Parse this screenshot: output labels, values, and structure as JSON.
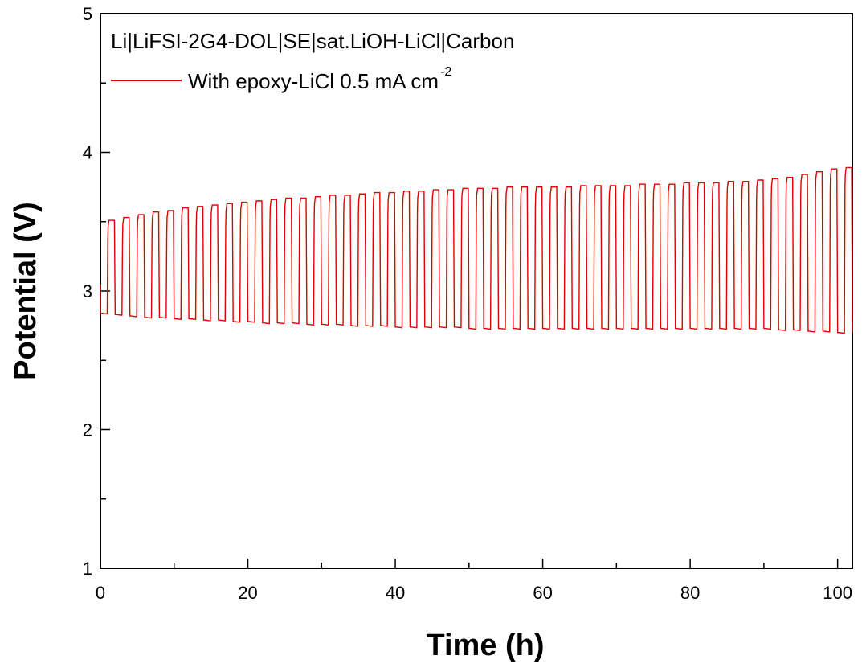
{
  "chart_data": {
    "type": "line",
    "title": "",
    "xlabel": "Time (h)",
    "ylabel": "Potential (V)",
    "xlim": [
      0,
      102
    ],
    "ylim": [
      1,
      5
    ],
    "xticks": [
      0,
      20,
      40,
      60,
      80,
      100
    ],
    "yticks": [
      1,
      2,
      3,
      4,
      5
    ],
    "xtick_labels": [
      "0",
      "20",
      "40",
      "60",
      "80",
      "100"
    ],
    "ytick_labels": [
      "1",
      "2",
      "3",
      "4",
      "5"
    ],
    "legend": {
      "header": "Li|LiFSI-2G4-DOL|SE|sat.LiOH-LiCl|Carbon",
      "entries": [
        {
          "label": "With epoxy-LiCl 0.5 mA cm",
          "superscript": "-2"
        }
      ],
      "placement": "top-left"
    },
    "series": [
      {
        "name": "With epoxy-LiCl 0.5 mA cm-2",
        "color": "#e00000",
        "cycle_period_h": 2,
        "cycle_start_x": [
          0,
          2,
          4,
          6,
          8,
          10,
          12,
          14,
          16,
          18,
          20,
          22,
          24,
          26,
          28,
          30,
          32,
          34,
          36,
          38,
          40,
          42,
          44,
          46,
          48,
          50,
          52,
          54,
          56,
          58,
          60,
          62,
          64,
          66,
          68,
          70,
          72,
          74,
          76,
          78,
          80,
          82,
          84,
          86,
          88,
          90,
          92,
          94,
          96,
          98,
          100
        ],
        "charge_voltage": [
          3.51,
          3.53,
          3.55,
          3.57,
          3.58,
          3.6,
          3.61,
          3.62,
          3.63,
          3.64,
          3.65,
          3.66,
          3.67,
          3.67,
          3.68,
          3.69,
          3.69,
          3.7,
          3.71,
          3.71,
          3.72,
          3.72,
          3.73,
          3.73,
          3.74,
          3.74,
          3.74,
          3.75,
          3.75,
          3.75,
          3.75,
          3.75,
          3.76,
          3.76,
          3.76,
          3.76,
          3.77,
          3.77,
          3.77,
          3.78,
          3.78,
          3.78,
          3.79,
          3.79,
          3.8,
          3.81,
          3.82,
          3.84,
          3.86,
          3.88,
          3.89
        ],
        "discharge_voltage": [
          2.84,
          2.83,
          2.82,
          2.81,
          2.81,
          2.8,
          2.8,
          2.79,
          2.79,
          2.78,
          2.78,
          2.77,
          2.77,
          2.77,
          2.76,
          2.76,
          2.76,
          2.75,
          2.75,
          2.75,
          2.74,
          2.74,
          2.74,
          2.74,
          2.74,
          2.73,
          2.73,
          2.73,
          2.73,
          2.73,
          2.73,
          2.73,
          2.73,
          2.73,
          2.73,
          2.73,
          2.73,
          2.73,
          2.73,
          2.73,
          2.73,
          2.73,
          2.73,
          2.73,
          2.73,
          2.73,
          2.72,
          2.72,
          2.71,
          2.71,
          2.7
        ],
        "rest_voltage": 3.05
      }
    ],
    "grid": false
  }
}
